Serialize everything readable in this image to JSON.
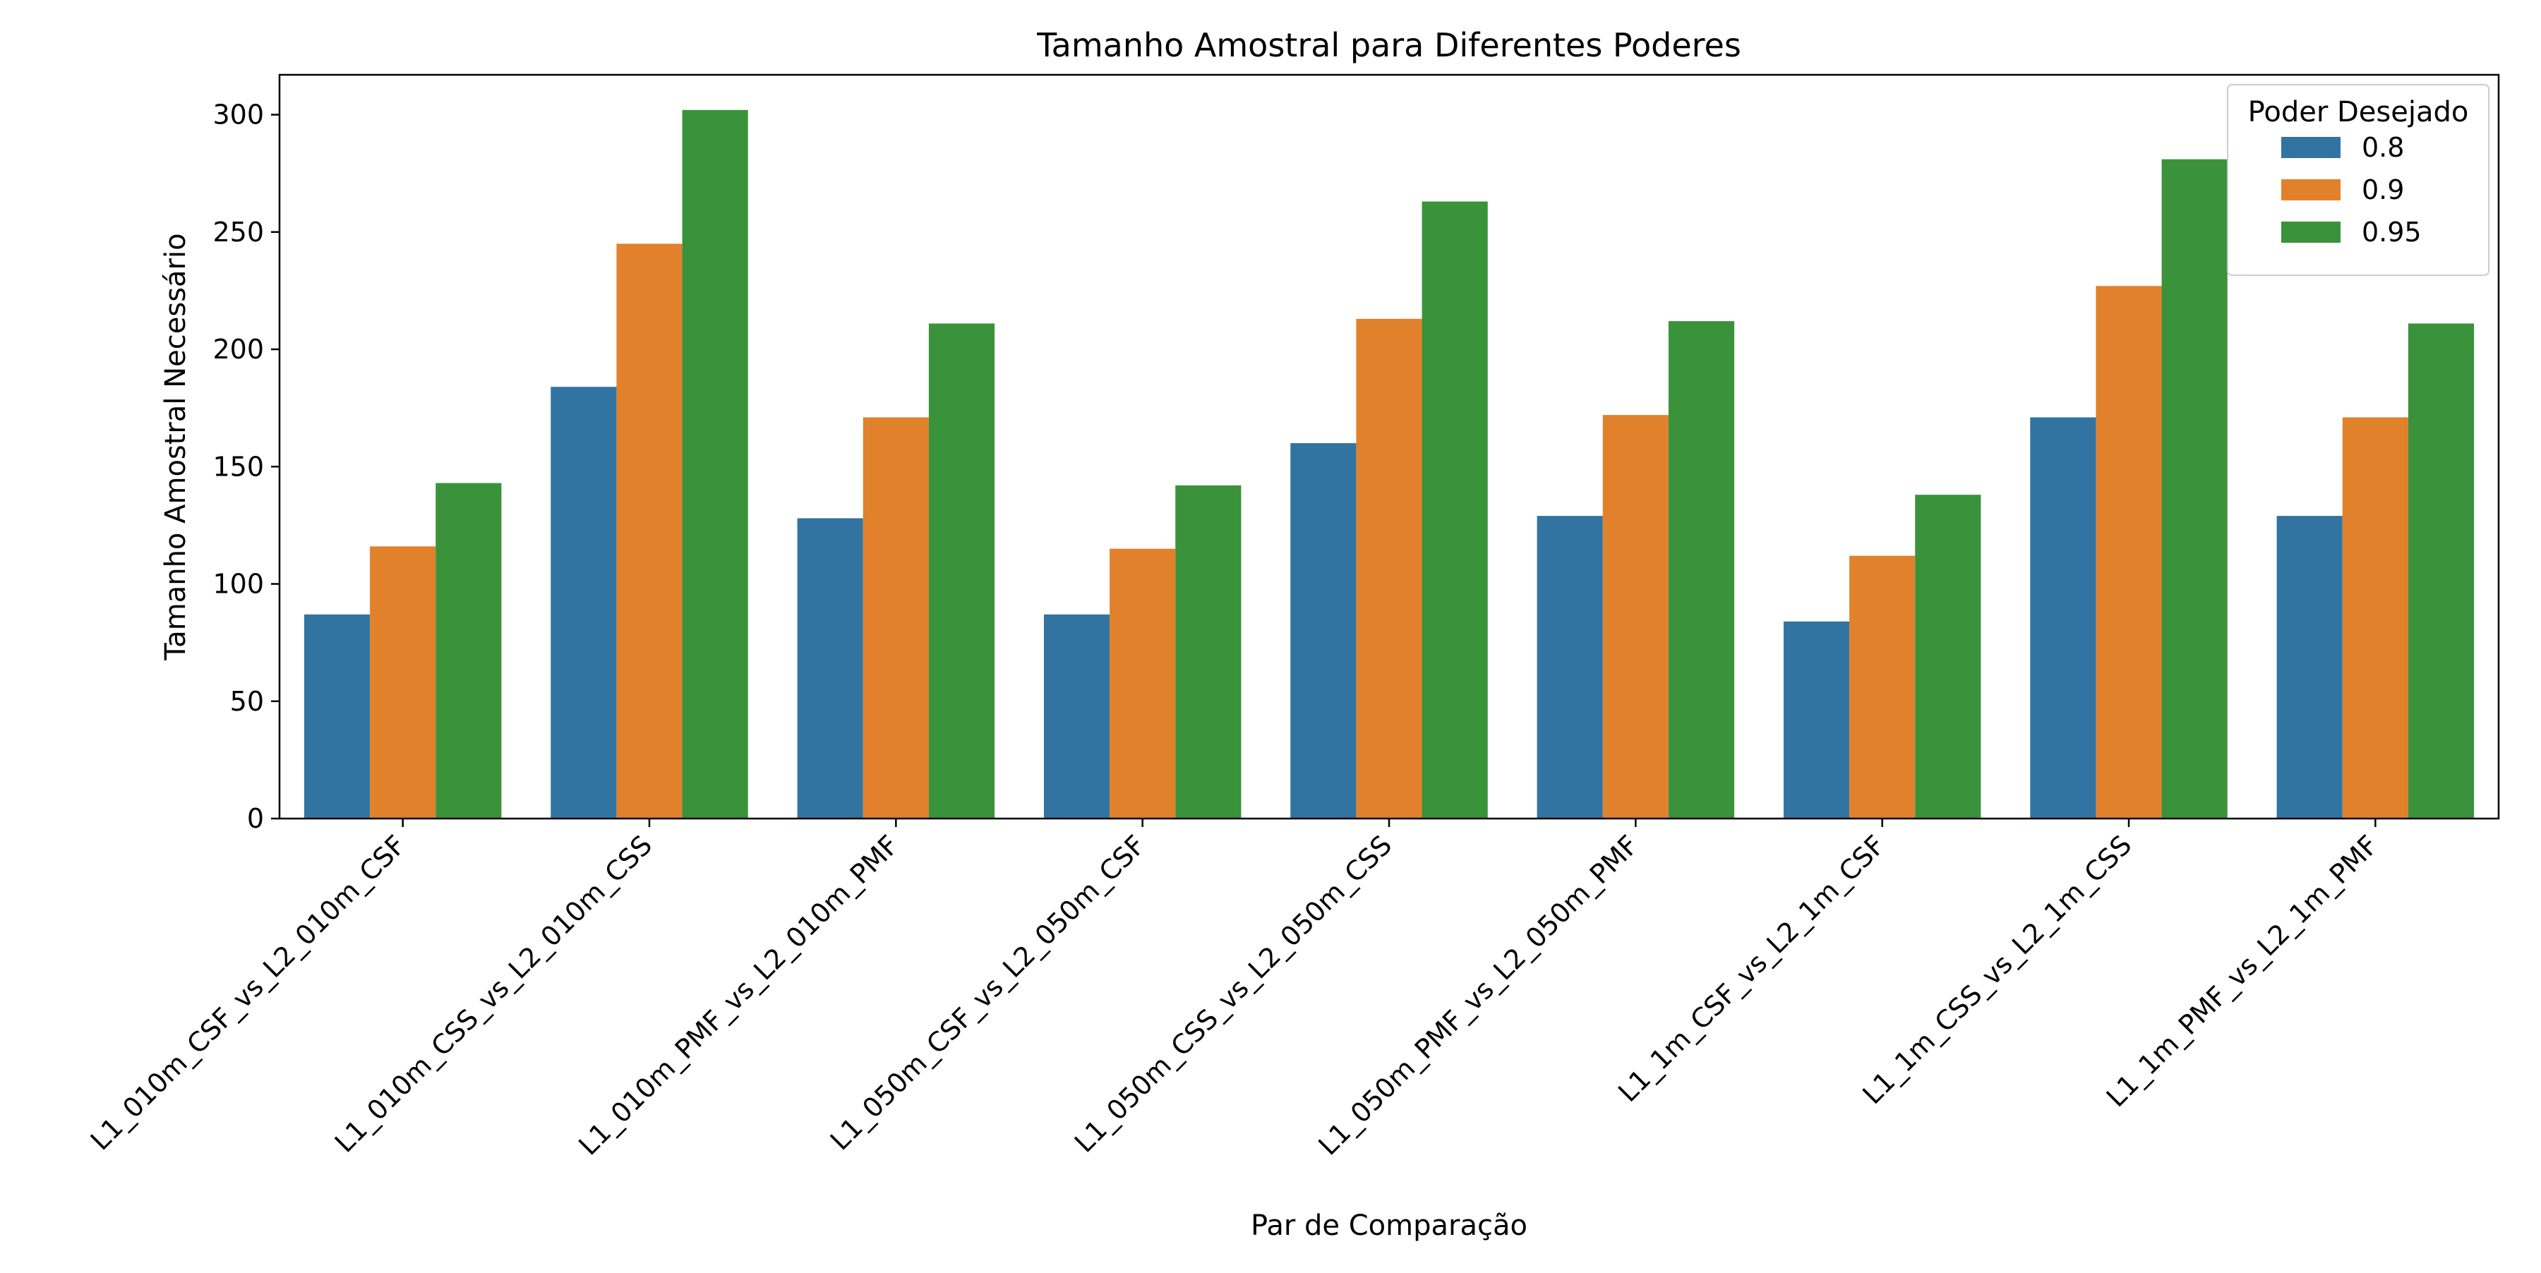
{
  "chart_data": {
    "type": "bar",
    "title": "Tamanho Amostral para Diferentes Poderes",
    "xlabel": "Par de Comparação",
    "ylabel": "Tamanho Amostral Necessário",
    "ylim": [
      0,
      317
    ],
    "yticks": [
      0,
      50,
      100,
      150,
      200,
      250,
      300
    ],
    "grid": false,
    "legend": {
      "title": "Poder Desejado",
      "placement": "top-right"
    },
    "categories": [
      "L1_010m_CSF_vs_L2_010m_CSF",
      "L1_010m_CSS_vs_L2_010m_CSS",
      "L1_010m_PMF_vs_L2_010m_PMF",
      "L1_050m_CSF_vs_L2_050m_CSF",
      "L1_050m_CSS_vs_L2_050m_CSS",
      "L1_050m_PMF_vs_L2_050m_PMF",
      "L1_1m_CSF_vs_L2_1m_CSF",
      "L1_1m_CSS_vs_L2_1m_CSS",
      "L1_1m_PMF_vs_L2_1m_PMF"
    ],
    "series": [
      {
        "name": "0.8",
        "color": "#3274a1",
        "values": [
          87,
          184,
          128,
          87,
          160,
          129,
          84,
          171,
          129
        ]
      },
      {
        "name": "0.9",
        "color": "#e1812c",
        "values": [
          116,
          245,
          171,
          115,
          213,
          172,
          112,
          227,
          171
        ]
      },
      {
        "name": "0.95",
        "color": "#3a923a",
        "values": [
          143,
          302,
          211,
          142,
          263,
          212,
          138,
          281,
          211
        ]
      }
    ]
  }
}
